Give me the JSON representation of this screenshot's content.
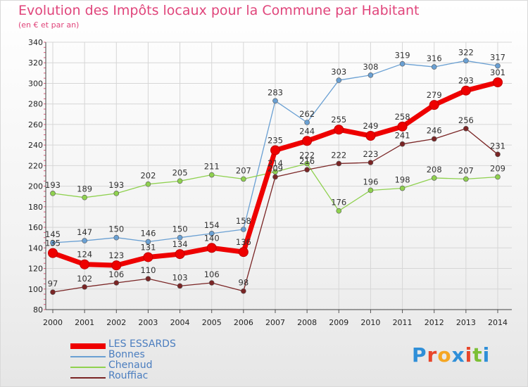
{
  "title": "Evolution des Impôts locaux pour la Commune par Habitant",
  "subtitle": "(en € et par an)",
  "logo_text": "Proxiti",
  "chart_data": {
    "type": "line",
    "x": [
      "2000",
      "2001",
      "2002",
      "2003",
      "2004",
      "2005",
      "2006",
      "2007",
      "2008",
      "2009",
      "2010",
      "2011",
      "2012",
      "2013",
      "2014"
    ],
    "ylim": [
      80,
      340
    ],
    "yticks": [
      80,
      100,
      120,
      140,
      160,
      180,
      200,
      220,
      240,
      260,
      280,
      300,
      320,
      340
    ],
    "grid": true,
    "legend_position": "bottom-left",
    "series": [
      {
        "name": "LES ESSARDS",
        "color": "#ee0000",
        "bold": true,
        "values": [
          135,
          124,
          123,
          131,
          134,
          140,
          136,
          235,
          244,
          255,
          249,
          258,
          279,
          293,
          301
        ]
      },
      {
        "name": "Bonnes",
        "color": "#6aa0d3",
        "values": [
          145,
          147,
          150,
          146,
          150,
          154,
          158,
          283,
          262,
          303,
          308,
          319,
          316,
          322,
          317
        ]
      },
      {
        "name": "Chenaud",
        "color": "#8fd14f",
        "values": [
          193,
          189,
          193,
          202,
          205,
          211,
          207,
          214,
          222,
          176,
          196,
          198,
          208,
          207,
          209
        ]
      },
      {
        "name": "Rouffiac",
        "color": "#7a2525",
        "values": [
          97,
          102,
          106,
          110,
          103,
          106,
          98,
          209,
          216,
          222,
          223,
          241,
          246,
          256,
          231
        ]
      }
    ]
  }
}
